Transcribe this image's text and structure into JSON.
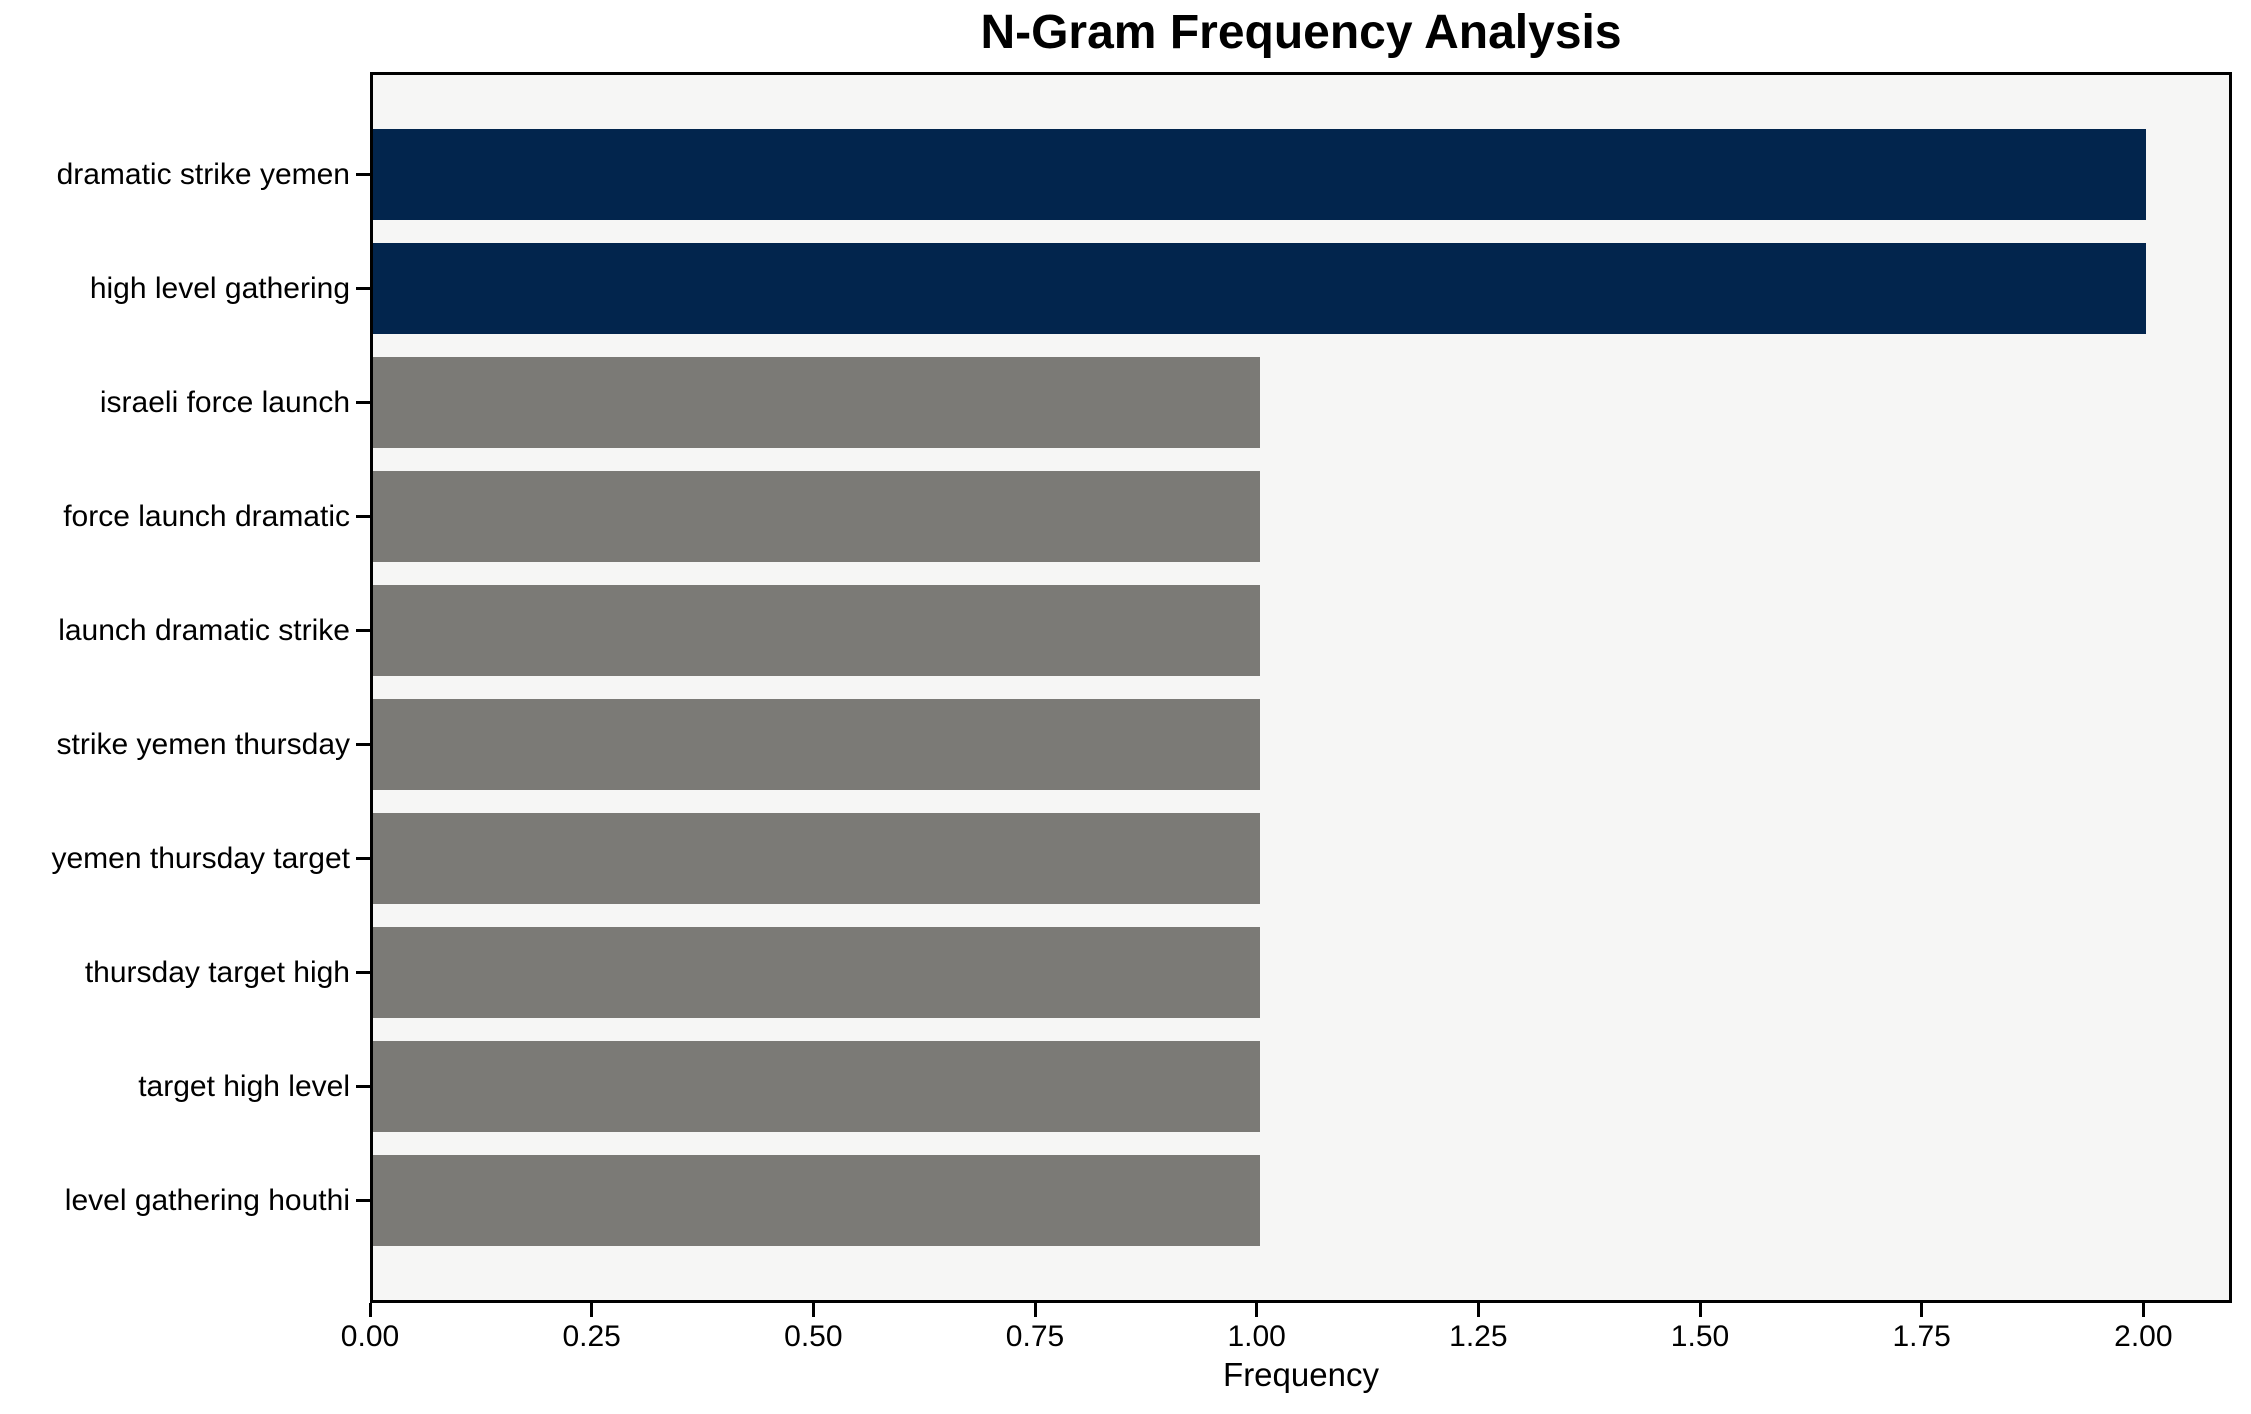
{
  "figure": {
    "background": "#ffffff"
  },
  "chart_data": {
    "type": "bar",
    "orientation": "horizontal",
    "title": "N-Gram Frequency Analysis",
    "xlabel": "Frequency",
    "ylabel": "",
    "categories": [
      "dramatic strike yemen",
      "high level gathering",
      "israeli force launch",
      "force launch dramatic",
      "launch dramatic strike",
      "strike yemen thursday",
      "yemen thursday target",
      "thursday target high",
      "target high level",
      "level gathering houthi"
    ],
    "values": [
      2,
      2,
      1,
      1,
      1,
      1,
      1,
      1,
      1,
      1
    ],
    "bar_colors": [
      "#02254d",
      "#02254d",
      "#7b7a76",
      "#7b7a76",
      "#7b7a76",
      "#7b7a76",
      "#7b7a76",
      "#7b7a76",
      "#7b7a76",
      "#7b7a76"
    ],
    "xlim": [
      0,
      2.1
    ],
    "xtick_values": [
      0,
      0.25,
      0.5,
      0.75,
      1.0,
      1.25,
      1.5,
      1.75,
      2.0
    ],
    "xtick_labels": [
      "0.00",
      "0.25",
      "0.50",
      "0.75",
      "1.00",
      "1.25",
      "1.50",
      "1.75",
      "2.00"
    ],
    "grid": false,
    "legend": false,
    "colors": {
      "bar_highlight": "#02254d",
      "bar_default": "#7b7a76",
      "plot_background": "#f6f6f5",
      "spine": "#000000",
      "text": "#000000"
    }
  }
}
